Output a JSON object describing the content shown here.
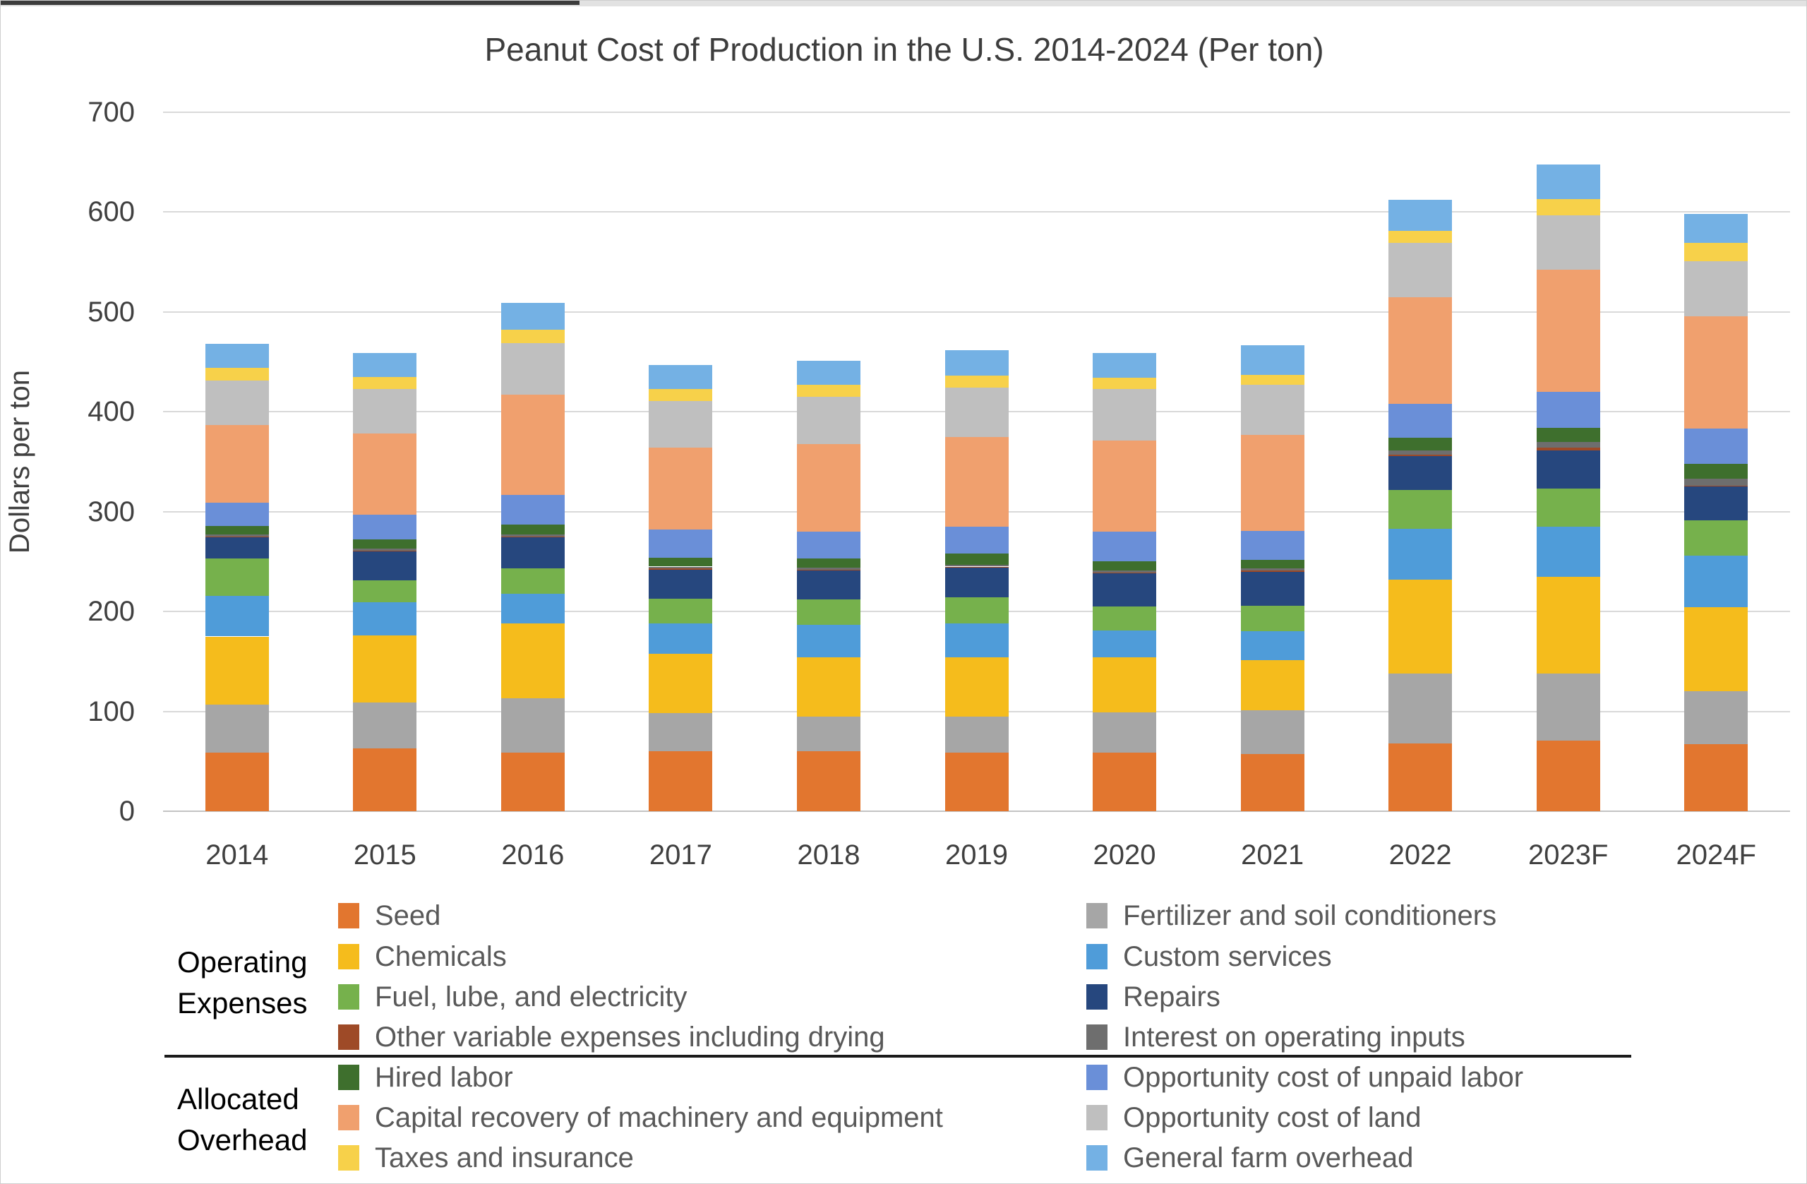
{
  "frame": {
    "background": "#ffffff",
    "border_color": "#cfcfcf",
    "top_strip_dark_color": "#3c3c3c",
    "top_strip_light_color": "#e2e2e2"
  },
  "chart_data": {
    "type": "bar",
    "stacked": true,
    "title": "Peanut Cost of Production in the U.S. 2014-2024 (Per ton)",
    "ylabel": "Dollars per ton",
    "xlabel": "",
    "ylim": [
      0,
      700
    ],
    "yticks": [
      0,
      100,
      200,
      300,
      400,
      500,
      600,
      700
    ],
    "grid": true,
    "legend_position": "bottom",
    "categories": [
      "2014",
      "2015",
      "2016",
      "2017",
      "2018",
      "2019",
      "2020",
      "2021",
      "2022",
      "2023F",
      "2024F"
    ],
    "series": [
      {
        "name": "Seed",
        "group": "Operating Expenses",
        "color": "#E2762F",
        "values": [
          59,
          63,
          59,
          60,
          60,
          59,
          59,
          57,
          68,
          71,
          67
        ]
      },
      {
        "name": "Fertilizer and soil conditioners",
        "group": "Operating Expenses",
        "color": "#A6A6A6",
        "values": [
          48,
          46,
          54,
          38,
          35,
          36,
          40,
          44,
          70,
          67,
          53
        ]
      },
      {
        "name": "Chemicals",
        "group": "Operating Expenses",
        "color": "#F5BC1C",
        "values": [
          68,
          67,
          75,
          60,
          59,
          59,
          55,
          50,
          94,
          97,
          84
        ]
      },
      {
        "name": "Custom services",
        "group": "Operating Expenses",
        "color": "#4F9CD9",
        "values": [
          41,
          33,
          30,
          30,
          33,
          34,
          27,
          29,
          51,
          50,
          52
        ]
      },
      {
        "name": "Fuel, lube, and electricity",
        "group": "Operating Expenses",
        "color": "#76B14C",
        "values": [
          37,
          22,
          25,
          25,
          25,
          26,
          24,
          26,
          39,
          38,
          35
        ]
      },
      {
        "name": "Repairs",
        "group": "Operating Expenses",
        "color": "#26477E",
        "values": [
          21,
          29,
          31,
          29,
          29,
          30,
          33,
          34,
          34,
          38,
          34
        ]
      },
      {
        "name": "Other variable expenses including drying",
        "group": "Operating Expenses",
        "color": "#9E4A27",
        "values": [
          1,
          1,
          1,
          1,
          1,
          1,
          1,
          1,
          1,
          3,
          1
        ]
      },
      {
        "name": "Interest on operating inputs",
        "group": "Operating Expenses",
        "color": "#6E6E6E",
        "values": [
          2,
          2,
          2,
          2,
          2,
          2,
          2,
          2,
          4,
          6,
          7
        ]
      },
      {
        "name": "Hired labor",
        "group": "Allocated Overhead",
        "color": "#3E6F2D",
        "values": [
          9,
          9,
          10,
          9,
          9,
          11,
          9,
          9,
          13,
          14,
          15
        ]
      },
      {
        "name": "Opportunity cost of unpaid labor",
        "group": "Allocated Overhead",
        "color": "#6A8FD8",
        "values": [
          23,
          25,
          30,
          28,
          27,
          27,
          30,
          29,
          34,
          36,
          35
        ]
      },
      {
        "name": "Capital recovery of machinery and equipment",
        "group": "Allocated Overhead",
        "color": "#F0A06E",
        "values": [
          78,
          81,
          100,
          82,
          88,
          90,
          91,
          96,
          107,
          122,
          113
        ]
      },
      {
        "name": "Opportunity cost of land",
        "group": "Allocated Overhead",
        "color": "#BFBFBF",
        "values": [
          44,
          45,
          52,
          47,
          47,
          49,
          52,
          50,
          54,
          55,
          55
        ]
      },
      {
        "name": "Taxes and insurance",
        "group": "Allocated Overhead",
        "color": "#F7D14A",
        "values": [
          13,
          12,
          13,
          12,
          12,
          12,
          11,
          10,
          12,
          16,
          18
        ]
      },
      {
        "name": "General farm overhead",
        "group": "Allocated Overhead",
        "color": "#74B1E4",
        "values": [
          24,
          24,
          27,
          24,
          24,
          26,
          25,
          30,
          31,
          35,
          29
        ]
      }
    ],
    "totals": [
      468,
      459,
      509,
      447,
      451,
      462,
      459,
      467,
      612,
      648,
      598
    ]
  },
  "legend": {
    "group_labels": [
      [
        "Operating",
        "Expenses"
      ],
      [
        "Allocated",
        "Overhead"
      ]
    ],
    "left_rows": [
      0,
      2,
      4,
      6,
      8,
      10,
      12
    ],
    "right_rows": [
      1,
      3,
      5,
      7,
      9,
      11,
      13
    ],
    "divider_color": "#1a1a1a"
  }
}
